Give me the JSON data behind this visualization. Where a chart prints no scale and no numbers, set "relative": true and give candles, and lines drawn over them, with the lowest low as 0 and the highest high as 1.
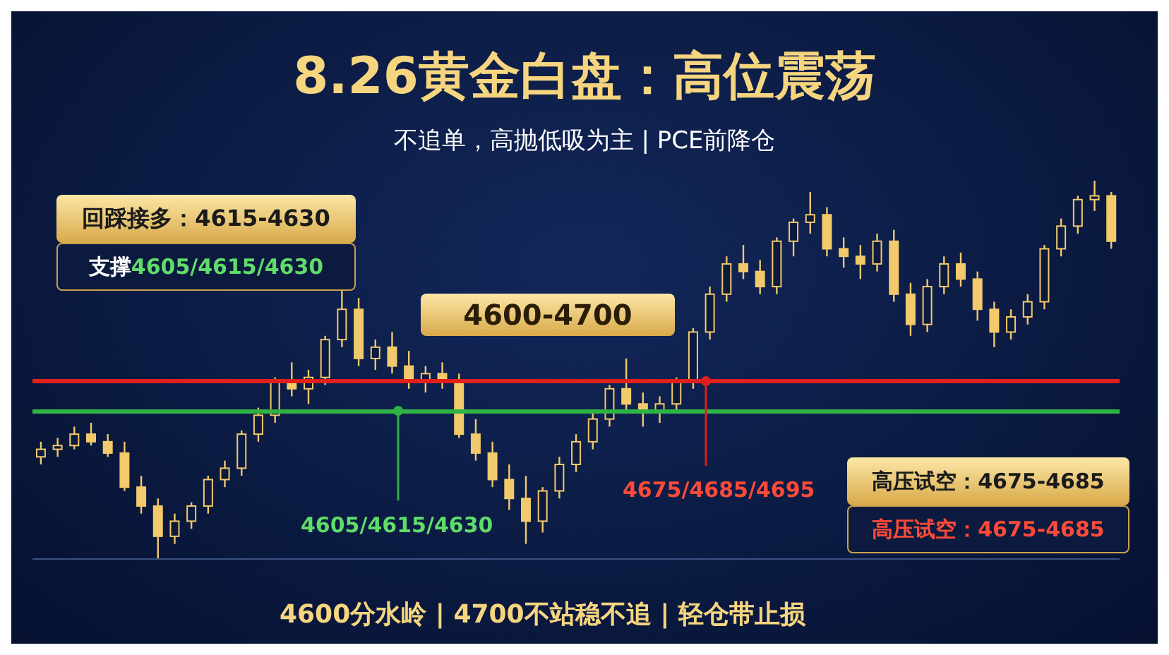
{
  "chart_data": {
    "type": "candlestick",
    "title": "8.26黄金白盘：高位震荡",
    "subtitle": "不追单，高抛低吸为主 | PCE前降仓",
    "relative": true,
    "color": "#f2c96b",
    "categories": [
      null,
      null,
      null,
      null,
      null,
      null,
      null,
      null,
      null,
      null,
      null,
      null,
      null,
      null,
      null,
      null,
      null,
      null,
      null,
      null,
      null,
      null,
      null,
      null,
      null,
      null,
      null,
      null,
      null,
      null,
      null,
      null,
      null,
      null,
      null,
      null,
      null,
      null,
      null,
      null,
      null,
      null,
      null,
      null,
      null,
      null,
      null,
      null,
      null,
      null,
      null,
      null,
      null,
      null,
      null,
      null,
      null,
      null,
      null,
      null,
      null,
      null,
      null,
      null,
      null
    ],
    "ohlc": [
      [
        0.27,
        0.31,
        0.25,
        0.29
      ],
      [
        0.29,
        0.32,
        0.27,
        0.3
      ],
      [
        0.3,
        0.35,
        0.29,
        0.33
      ],
      [
        0.33,
        0.36,
        0.3,
        0.31
      ],
      [
        0.31,
        0.33,
        0.27,
        0.28
      ],
      [
        0.28,
        0.31,
        0.18,
        0.19
      ],
      [
        0.19,
        0.22,
        0.12,
        0.14
      ],
      [
        0.14,
        0.16,
        0.0,
        0.06
      ],
      [
        0.06,
        0.12,
        0.04,
        0.1
      ],
      [
        0.1,
        0.15,
        0.08,
        0.14
      ],
      [
        0.14,
        0.22,
        0.12,
        0.21
      ],
      [
        0.21,
        0.26,
        0.19,
        0.24
      ],
      [
        0.24,
        0.34,
        0.22,
        0.33
      ],
      [
        0.33,
        0.4,
        0.31,
        0.38
      ],
      [
        0.38,
        0.48,
        0.36,
        0.47
      ],
      [
        0.47,
        0.52,
        0.43,
        0.45
      ],
      [
        0.45,
        0.5,
        0.41,
        0.48
      ],
      [
        0.48,
        0.59,
        0.46,
        0.58
      ],
      [
        0.58,
        0.71,
        0.56,
        0.66
      ],
      [
        0.66,
        0.69,
        0.51,
        0.53
      ],
      [
        0.53,
        0.58,
        0.5,
        0.56
      ],
      [
        0.56,
        0.6,
        0.49,
        0.51
      ],
      [
        0.51,
        0.55,
        0.45,
        0.47
      ],
      [
        0.47,
        0.51,
        0.44,
        0.49
      ],
      [
        0.49,
        0.52,
        0.45,
        0.47
      ],
      [
        0.47,
        0.49,
        0.32,
        0.33
      ],
      [
        0.33,
        0.37,
        0.26,
        0.28
      ],
      [
        0.28,
        0.31,
        0.19,
        0.21
      ],
      [
        0.21,
        0.25,
        0.13,
        0.16
      ],
      [
        0.16,
        0.22,
        0.04,
        0.1
      ],
      [
        0.1,
        0.19,
        0.07,
        0.18
      ],
      [
        0.18,
        0.27,
        0.16,
        0.25
      ],
      [
        0.25,
        0.33,
        0.23,
        0.31
      ],
      [
        0.31,
        0.39,
        0.29,
        0.37
      ],
      [
        0.37,
        0.46,
        0.35,
        0.45
      ],
      [
        0.45,
        0.53,
        0.39,
        0.41
      ],
      [
        0.41,
        0.44,
        0.35,
        0.39
      ],
      [
        0.39,
        0.43,
        0.36,
        0.41
      ],
      [
        0.41,
        0.48,
        0.39,
        0.47
      ],
      [
        0.47,
        0.61,
        0.45,
        0.6
      ],
      [
        0.6,
        0.72,
        0.58,
        0.7
      ],
      [
        0.7,
        0.8,
        0.68,
        0.78
      ],
      [
        0.78,
        0.83,
        0.74,
        0.76
      ],
      [
        0.76,
        0.79,
        0.7,
        0.72
      ],
      [
        0.72,
        0.85,
        0.7,
        0.84
      ],
      [
        0.84,
        0.9,
        0.8,
        0.89
      ],
      [
        0.89,
        0.97,
        0.86,
        0.91
      ],
      [
        0.91,
        0.93,
        0.8,
        0.82
      ],
      [
        0.82,
        0.85,
        0.77,
        0.8
      ],
      [
        0.8,
        0.83,
        0.74,
        0.78
      ],
      [
        0.78,
        0.86,
        0.76,
        0.84
      ],
      [
        0.84,
        0.87,
        0.68,
        0.7
      ],
      [
        0.7,
        0.73,
        0.59,
        0.62
      ],
      [
        0.62,
        0.74,
        0.6,
        0.72
      ],
      [
        0.72,
        0.8,
        0.7,
        0.78
      ],
      [
        0.78,
        0.81,
        0.72,
        0.74
      ],
      [
        0.74,
        0.76,
        0.63,
        0.66
      ],
      [
        0.66,
        0.68,
        0.56,
        0.6
      ],
      [
        0.6,
        0.66,
        0.58,
        0.64
      ],
      [
        0.64,
        0.7,
        0.62,
        0.68
      ],
      [
        0.68,
        0.83,
        0.66,
        0.82
      ],
      [
        0.82,
        0.9,
        0.8,
        0.88
      ],
      [
        0.88,
        0.96,
        0.86,
        0.95
      ],
      [
        0.95,
        1.0,
        0.92,
        0.96
      ],
      [
        0.96,
        0.97,
        0.82,
        0.84
      ]
    ],
    "ref_lines": [
      {
        "axis": "y",
        "value": 0.47,
        "color": "#e0201c"
      },
      {
        "axis": "y",
        "value": 0.39,
        "color": "#2fb344"
      }
    ],
    "annotations": [
      "回踩接多：4615-4630",
      "支撑",
      "4605/4615/4630",
      "4600-4700",
      "4605/4615/4630",
      "4675/4685/4695",
      "高压试空：4675-4685",
      "高压试空：4675-4685",
      "4600分水岭 | 4700不站稳不追 | 轻仓带止损"
    ]
  }
}
